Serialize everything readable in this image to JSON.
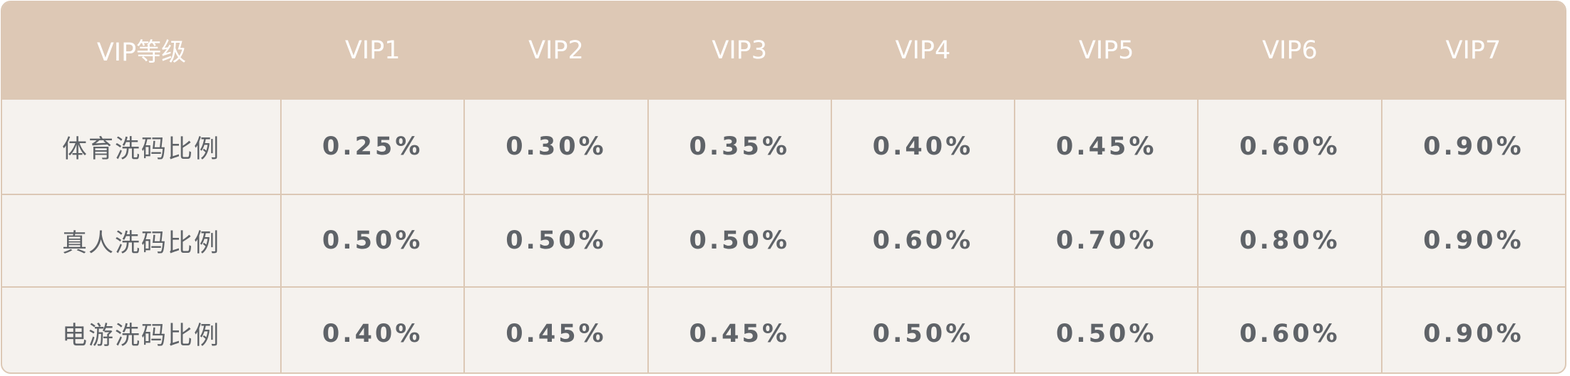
{
  "table": {
    "header": [
      "VIP等级",
      "VIP1",
      "VIP2",
      "VIP3",
      "VIP4",
      "VIP5",
      "VIP6",
      "VIP7"
    ],
    "rows": [
      {
        "label": "体育洗码比例",
        "values": [
          "0.25%",
          "0.30%",
          "0.35%",
          "0.40%",
          "0.45%",
          "0.60%",
          "0.90%"
        ]
      },
      {
        "label": "真人洗码比例",
        "values": [
          "0.50%",
          "0.50%",
          "0.50%",
          "0.60%",
          "0.70%",
          "0.80%",
          "0.90%"
        ]
      },
      {
        "label": "电游洗码比例",
        "values": [
          "0.40%",
          "0.45%",
          "0.45%",
          "0.50%",
          "0.50%",
          "0.60%",
          "0.90%"
        ]
      }
    ]
  },
  "colors": {
    "header_bg": "#ddc8b5",
    "body_bg": "#f5f2ee",
    "border": "#dcc8b5",
    "header_text": "#ffffff",
    "body_text": "#5f6368"
  }
}
